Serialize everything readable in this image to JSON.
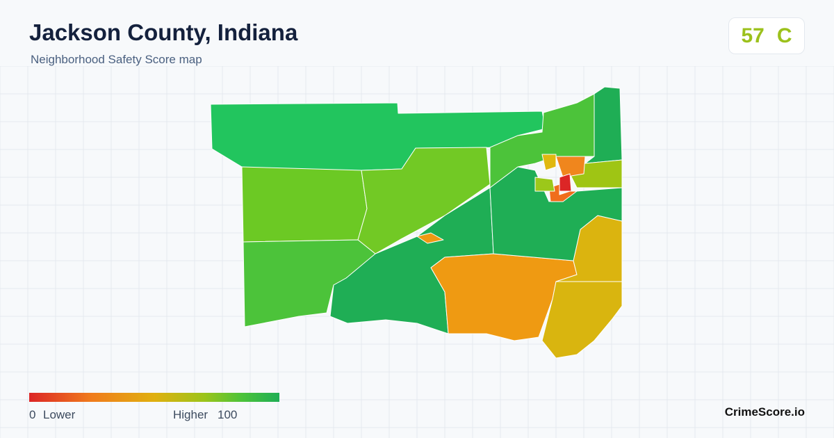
{
  "header": {
    "title": "Jackson County, Indiana",
    "subtitle": "Neighborhood Safety Score map"
  },
  "score": {
    "value": 57,
    "grade": "C"
  },
  "legend": {
    "min": 0,
    "min_label": "Lower",
    "max_label": "Higher",
    "max": 100
  },
  "brand": "CrimeScore.io"
}
